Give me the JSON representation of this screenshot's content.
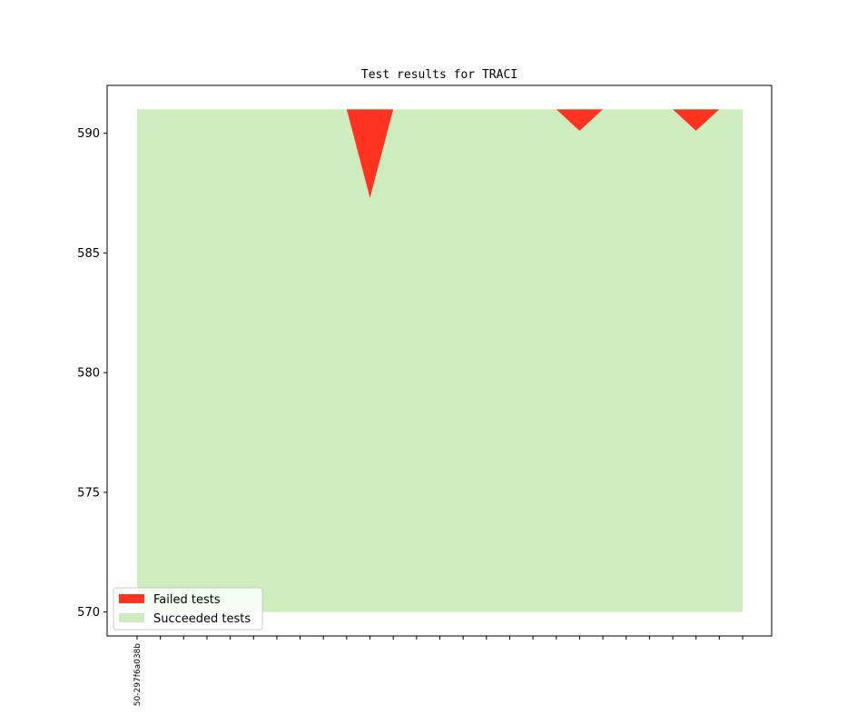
{
  "chart_data": {
    "type": "area",
    "title": "Test results for TRACI",
    "xlabel": "",
    "ylabel": "",
    "ylim": [
      569,
      592
    ],
    "yticks": [
      570,
      575,
      580,
      585,
      590
    ],
    "x_tick_count": 27,
    "x_tick_labels": [
      "50-297f6a038b"
    ],
    "series": [
      {
        "name": "Failed tests",
        "color": "#ff331f",
        "baseline_top": 591,
        "values_lower_edge": [
          591,
          591,
          591,
          591,
          591,
          591,
          591,
          591,
          591,
          591,
          587.3,
          591,
          591,
          591,
          591,
          591,
          591,
          591,
          591,
          590.1,
          591,
          591,
          591,
          591,
          590.1,
          591,
          591
        ]
      },
      {
        "name": "Succeeded tests",
        "color": "#ceedbf",
        "values": [
          591,
          591,
          591,
          591,
          591,
          591,
          591,
          591,
          591,
          591,
          587.3,
          591,
          591,
          591,
          591,
          591,
          591,
          591,
          591,
          590.1,
          591,
          591,
          591,
          591,
          590.1,
          591,
          591
        ],
        "base": 570
      }
    ],
    "legend_position": "lower-left",
    "grid": false
  }
}
